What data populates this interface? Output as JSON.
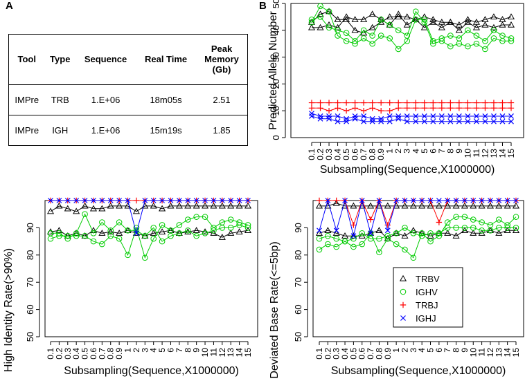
{
  "labels": {
    "a": "A",
    "b": "B"
  },
  "table": {
    "headers": [
      "Tool",
      "Type",
      "Sequence",
      "Real Time",
      "Peak Memory (Gb)"
    ],
    "rows": [
      [
        "IMPre",
        "TRB",
        "1.E+06",
        "18m05s",
        "2.51"
      ],
      [
        "IMPre",
        "IGH",
        "1.E+06",
        "15m19s",
        "1.85"
      ]
    ]
  },
  "x_ticks": [
    "0.1",
    "0.2",
    "0.3",
    "0.4",
    "0.5",
    "0.6",
    "0.7",
    "0.8",
    "0.9",
    "1",
    "2",
    "3",
    "4",
    "5",
    "6",
    "7",
    "8",
    "9",
    "10",
    "11",
    "12",
    "13",
    "14",
    "15"
  ],
  "legend": [
    {
      "name": "TRBV",
      "color": "#000000",
      "marker": "triangle"
    },
    {
      "name": "IGHV",
      "color": "#00cc00",
      "marker": "circle"
    },
    {
      "name": "TRBJ",
      "color": "#ff0000",
      "marker": "plus"
    },
    {
      "name": "IGHJ",
      "color": "#0000ff",
      "marker": "x"
    }
  ],
  "chart_data": [
    {
      "id": "allele",
      "type": "line",
      "title": "",
      "xlabel": "Subsampling(Sequence,X1000000)",
      "ylabel": "Predicted Allele Number",
      "ylim": [
        0,
        50
      ],
      "yticks": [
        0,
        10,
        20,
        30,
        40,
        50
      ],
      "series": [
        {
          "name": "TRBV",
          "values": [
            41,
            41,
            42,
            41,
            45,
            44,
            44,
            46,
            44,
            42,
            46,
            42,
            44,
            41,
            43,
            41,
            43,
            40,
            43,
            41,
            42,
            41,
            42,
            42
          ]
        },
        {
          "name": "TRBV",
          "values": [
            43,
            46,
            47,
            44,
            44,
            40,
            39,
            41,
            43,
            45,
            45,
            45,
            44,
            45,
            44,
            43,
            43,
            42,
            44,
            43,
            44,
            45,
            44,
            45
          ]
        },
        {
          "name": "IGHV",
          "values": [
            44,
            45,
            41,
            40,
            39,
            36,
            40,
            38,
            44,
            42,
            40,
            38,
            47,
            43,
            35,
            36,
            34,
            35,
            34,
            35,
            33,
            37,
            36,
            36
          ]
        },
        {
          "name": "IGHV",
          "values": [
            43,
            49,
            47,
            38,
            36,
            35,
            37,
            35,
            38,
            37,
            33,
            36,
            44,
            44,
            36,
            37,
            38,
            37,
            40,
            38,
            36,
            40,
            38,
            37
          ]
        },
        {
          "name": "TRBJ",
          "values": [
            13,
            13,
            13,
            13,
            13,
            13,
            13,
            13,
            13,
            13,
            13,
            13,
            13,
            13,
            13,
            13,
            13,
            13,
            13,
            13,
            13,
            13,
            13,
            13
          ]
        },
        {
          "name": "TRBJ",
          "values": [
            11,
            11,
            10,
            11,
            10,
            11,
            10,
            11,
            10,
            10,
            11,
            11,
            11,
            11,
            11,
            11,
            11,
            11,
            11,
            11,
            11,
            11,
            11,
            11
          ]
        },
        {
          "name": "IGHJ",
          "values": [
            9,
            8,
            8,
            8,
            7,
            8,
            8,
            7,
            7,
            8,
            8,
            8,
            8,
            8,
            8,
            8,
            8,
            8,
            8,
            8,
            8,
            8,
            8,
            8
          ]
        },
        {
          "name": "IGHJ",
          "values": [
            8,
            7,
            7,
            6,
            6,
            7,
            6,
            6,
            6,
            6,
            7,
            6,
            6,
            6,
            6,
            6,
            6,
            6,
            6,
            6,
            6,
            6,
            6,
            6
          ]
        }
      ]
    },
    {
      "id": "identity",
      "type": "line",
      "title": "",
      "xlabel": "Subsampling(Sequence,X1000000)",
      "ylabel": "High Identity Rate(>90%)",
      "ylim": [
        50,
        100
      ],
      "yticks": [
        50,
        60,
        70,
        80,
        90
      ],
      "series": [
        {
          "name": "TRBV",
          "values": [
            88.5,
            89,
            87,
            88,
            87,
            89,
            88,
            88.5,
            88,
            89,
            88,
            87,
            88,
            88.5,
            89,
            88,
            88.5,
            89,
            88.5,
            88,
            86.5,
            88,
            88.5,
            89
          ]
        },
        {
          "name": "TRBV",
          "values": [
            96,
            98,
            97,
            96,
            98,
            97,
            97,
            98,
            98,
            98,
            96,
            98,
            98,
            97,
            98,
            98,
            98,
            98,
            98,
            98,
            98,
            98,
            98,
            98
          ]
        },
        {
          "name": "IGHV",
          "values": [
            86,
            87,
            87,
            87,
            87,
            85,
            84,
            87,
            86,
            80,
            90,
            79,
            86,
            91,
            89,
            91,
            93,
            94,
            94,
            90,
            92,
            93,
            92,
            91
          ]
        },
        {
          "name": "IGHV",
          "values": [
            88,
            88,
            86,
            88,
            95,
            88,
            92,
            89,
            92,
            89,
            89,
            87,
            90,
            85,
            87,
            88,
            89,
            87,
            88,
            89,
            90,
            90,
            91,
            90
          ]
        },
        {
          "name": "TRBJ",
          "values": [
            100,
            100,
            100,
            100,
            100,
            100,
            100,
            100,
            100,
            100,
            100,
            100,
            100,
            100,
            100,
            100,
            100,
            100,
            100,
            100,
            100,
            100,
            100,
            100
          ]
        },
        {
          "name": "IGHJ",
          "values": [
            100,
            100,
            100,
            100,
            100,
            100,
            100,
            100,
            100,
            100,
            88,
            100,
            100,
            100,
            100,
            100,
            100,
            100,
            100,
            100,
            100,
            100,
            100,
            100
          ]
        }
      ]
    },
    {
      "id": "deviated",
      "type": "line",
      "title": "",
      "xlabel": "Subsampling(Sequence,X1000000)",
      "ylabel": "Deviated Base Rate(<=5bp)",
      "ylim": [
        50,
        100
      ],
      "yticks": [
        50,
        60,
        70,
        80,
        90
      ],
      "series": [
        {
          "name": "TRBV",
          "values": [
            88,
            89,
            88,
            87,
            87,
            87,
            88,
            89,
            86,
            88,
            87,
            89,
            88,
            87,
            88,
            88,
            87,
            89,
            88,
            88,
            89,
            88,
            89,
            89
          ]
        },
        {
          "name": "TRBV",
          "values": [
            98,
            98,
            99,
            98,
            98,
            98,
            98,
            98,
            98,
            98,
            98,
            98,
            98,
            98,
            98,
            98,
            98,
            98,
            98,
            98,
            98,
            98,
            98,
            98
          ]
        },
        {
          "name": "IGHV",
          "values": [
            82,
            84,
            83,
            85,
            83,
            84,
            88,
            81,
            86,
            84,
            82,
            79,
            88,
            85,
            87,
            92,
            94,
            94,
            93,
            92,
            91,
            93,
            91,
            94
          ]
        },
        {
          "name": "IGHV",
          "values": [
            86,
            87,
            86,
            85,
            86,
            88,
            86,
            86,
            87,
            88,
            90,
            88,
            87,
            88,
            88,
            90,
            90,
            90,
            90,
            89,
            89,
            90,
            90,
            90
          ]
        },
        {
          "name": "TRBJ",
          "values": [
            100,
            100,
            100,
            100,
            91,
            100,
            93,
            100,
            91,
            100,
            100,
            100,
            100,
            100,
            92,
            100,
            100,
            100,
            100,
            100,
            100,
            100,
            100,
            100
          ]
        },
        {
          "name": "IGHJ",
          "values": [
            89,
            100,
            89,
            100,
            87,
            100,
            88,
            100,
            89,
            100,
            100,
            100,
            100,
            100,
            100,
            100,
            100,
            100,
            100,
            100,
            100,
            100,
            100,
            100
          ]
        }
      ]
    }
  ]
}
